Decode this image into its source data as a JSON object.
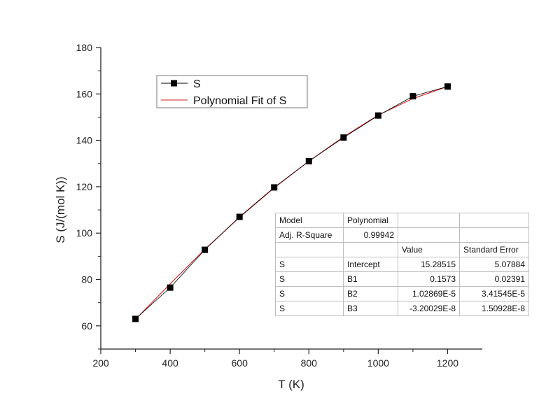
{
  "chart_data": {
    "type": "line",
    "xlabel": "T (K)",
    "ylabel": "S (J/(mol K))",
    "xlim": [
      200,
      1300
    ],
    "ylim": [
      50,
      180
    ],
    "xticks": [
      "200",
      "400",
      "600",
      "800",
      "1000",
      "1200"
    ],
    "yticks": [
      "60",
      "80",
      "100",
      "120",
      "140",
      "160",
      "180"
    ],
    "legend_position": "top-left",
    "grid": false,
    "series": [
      {
        "name": "S",
        "marker": "square",
        "color": "#000000",
        "x": [
          300,
          400,
          500,
          600,
          700,
          800,
          900,
          1000,
          1100,
          1200
        ],
        "y": [
          63,
          76.5,
          92.8,
          107,
          119.7,
          131,
          141.2,
          150.7,
          159,
          163.2
        ]
      },
      {
        "name": "Polynomial Fit of S",
        "marker": "none",
        "color": "#cc2020",
        "x": [
          300,
          400,
          500,
          600,
          700,
          800,
          900,
          1000,
          1100,
          1200
        ],
        "y": [
          62.8,
          78.1,
          93.0,
          106.8,
          119.5,
          131.0,
          141.5,
          150.9,
          158.0,
          163.2
        ]
      }
    ]
  },
  "fit_table": {
    "rows": [
      [
        "Model",
        "Polynomial",
        "",
        ""
      ],
      [
        "Adj. R-Square",
        "0.99942",
        "",
        ""
      ],
      [
        "",
        "",
        "Value",
        "Standard Error"
      ],
      [
        "S",
        "Intercept",
        "15.28515",
        "5.07884"
      ],
      [
        "S",
        "B1",
        "0.1573",
        "0.02391"
      ],
      [
        "S",
        "B2",
        "1.02869E-5",
        "3.41545E-5"
      ],
      [
        "S",
        "B3",
        "-3.20029E-8",
        "1.50928E-8"
      ]
    ]
  }
}
